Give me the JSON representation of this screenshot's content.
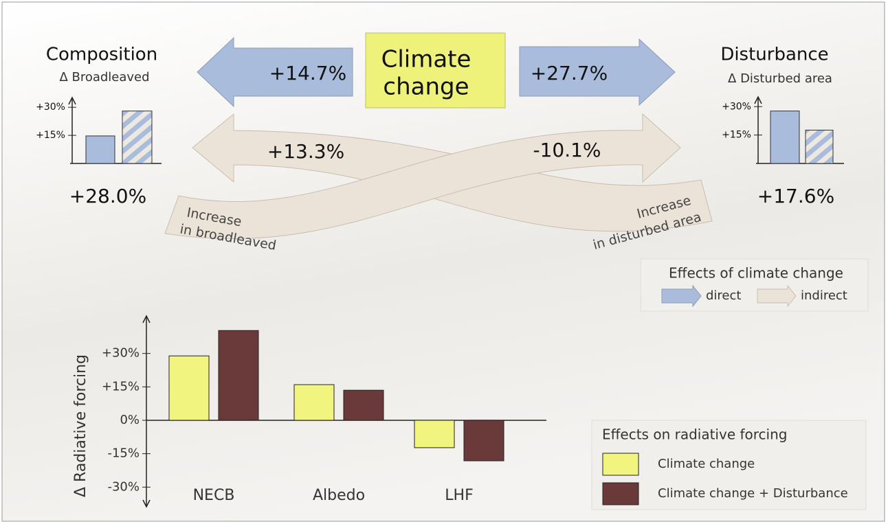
{
  "diagram": {
    "center": [
      "Climate",
      "change"
    ],
    "composition": {
      "title": "Composition",
      "subtitle": "Δ Broadleaved",
      "total": "+28.0%"
    },
    "disturbance": {
      "title": "Disturbance",
      "subtitle": "Δ Disturbed area",
      "total": "+17.6%"
    },
    "direct_left": "+14.7%",
    "direct_right": "+27.7%",
    "indirect_left": "+13.3%",
    "indirect_right": "-10.1%",
    "band_broadleaved": [
      "Increase",
      "in broadleaved"
    ],
    "band_disturbed": [
      "Increase",
      "in disturbed area"
    ],
    "effects_legend": {
      "title": "Effects of climate change",
      "direct": "direct",
      "indirect": "indirect"
    }
  },
  "chart_data": [
    {
      "type": "bar",
      "values": [
        14.7,
        28.0
      ],
      "styles": [
        "solid",
        "hatched"
      ],
      "color": "#a9bcdc",
      "ylim": [
        0,
        33
      ],
      "yticks": [
        {
          "value": 15,
          "label": "+15%"
        },
        {
          "value": 30,
          "label": "+30%"
        }
      ]
    },
    {
      "type": "bar",
      "values": [
        27.7,
        17.6
      ],
      "styles": [
        "solid",
        "hatched"
      ],
      "color": "#a9bcdc",
      "ylim": [
        0,
        33
      ],
      "yticks": [
        {
          "value": 15,
          "label": "+15%"
        },
        {
          "value": 30,
          "label": "+30%"
        }
      ]
    },
    {
      "type": "bar",
      "y_label": "Δ Radiative forcing",
      "legend_title": "Effects on radiative forcing",
      "categories": [
        "NECB",
        "Albedo",
        "LHF"
      ],
      "series": [
        {
          "name": "Climate change",
          "color": "#f1f47e",
          "values": [
            28.9,
            16,
            -12.3
          ]
        },
        {
          "name": "Climate change + Disturbance",
          "color": "#6a3a3b",
          "values": [
            40.3,
            13.5,
            -18.2
          ]
        }
      ],
      "ylim": [
        -37,
        45
      ],
      "yticks": [
        {
          "value": -30,
          "label": "-30%"
        },
        {
          "value": -15,
          "label": "-15%"
        },
        {
          "value": 0,
          "label": "0%"
        },
        {
          "value": 15,
          "label": "+15%"
        },
        {
          "value": 30,
          "label": "+30%"
        }
      ]
    }
  ]
}
